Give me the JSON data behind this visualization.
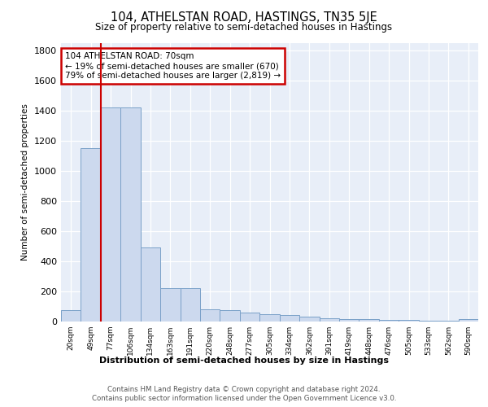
{
  "title": "104, ATHELSTAN ROAD, HASTINGS, TN35 5JE",
  "subtitle": "Size of property relative to semi-detached houses in Hastings",
  "xlabel": "Distribution of semi-detached houses by size in Hastings",
  "ylabel": "Number of semi-detached properties",
  "categories": [
    "20sqm",
    "49sqm",
    "77sqm",
    "106sqm",
    "134sqm",
    "163sqm",
    "191sqm",
    "220sqm",
    "248sqm",
    "277sqm",
    "305sqm",
    "334sqm",
    "362sqm",
    "391sqm",
    "419sqm",
    "448sqm",
    "476sqm",
    "505sqm",
    "533sqm",
    "562sqm",
    "590sqm"
  ],
  "values": [
    75,
    1150,
    1420,
    1420,
    490,
    220,
    220,
    80,
    75,
    60,
    50,
    45,
    30,
    20,
    15,
    15,
    10,
    10,
    5,
    5,
    15
  ],
  "bar_color": "#ccd9ee",
  "bar_edgecolor": "#7aa0c8",
  "red_line_index": 2,
  "annotation_title": "104 ATHELSTAN ROAD: 70sqm",
  "annotation_line1": "← 19% of semi-detached houses are smaller (670)",
  "annotation_line2": "79% of semi-detached houses are larger (2,819) →",
  "annotation_box_color": "#ffffff",
  "annotation_box_edgecolor": "#cc0000",
  "red_line_color": "#cc0000",
  "ylim": [
    0,
    1850
  ],
  "yticks": [
    0,
    200,
    400,
    600,
    800,
    1000,
    1200,
    1400,
    1600,
    1800
  ],
  "background_color": "#e8eef8",
  "grid_color": "#ffffff",
  "footer_line1": "Contains HM Land Registry data © Crown copyright and database right 2024.",
  "footer_line2": "Contains public sector information licensed under the Open Government Licence v3.0."
}
